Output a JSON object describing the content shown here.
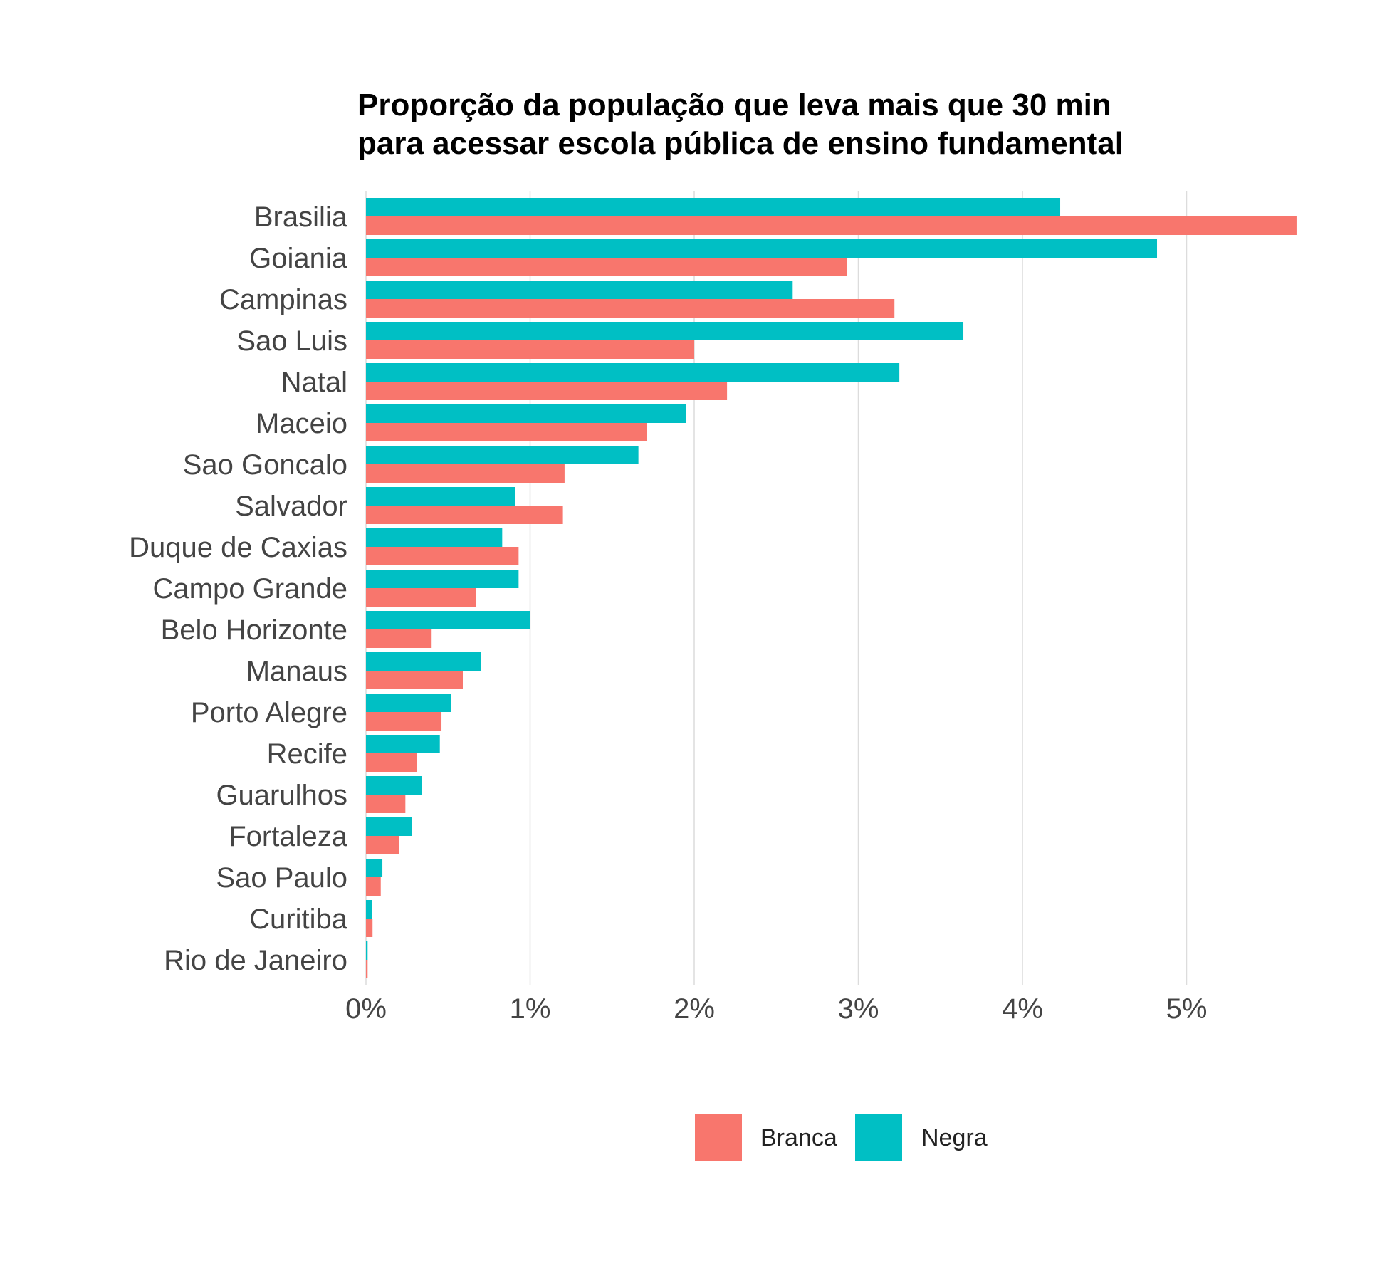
{
  "chart_data": {
    "type": "bar",
    "orientation": "horizontal",
    "title_lines": [
      "Proporção da população que leva mais que 30 min",
      "para acessar escola pública de ensino fundamental"
    ],
    "xlabel": "",
    "ylabel": "",
    "xlim": [
      0,
      5.75
    ],
    "x_ticks": [
      {
        "value": 0,
        "label": "0%"
      },
      {
        "value": 1,
        "label": "1%"
      },
      {
        "value": 2,
        "label": "2%"
      },
      {
        "value": 3,
        "label": "3%"
      },
      {
        "value": 4,
        "label": "4%"
      },
      {
        "value": 5,
        "label": "5%"
      }
    ],
    "grid": true,
    "legend_position": "bottom",
    "categories": [
      "Brasilia",
      "Goiania",
      "Campinas",
      "Sao Luis",
      "Natal",
      "Maceio",
      "Sao Goncalo",
      "Salvador",
      "Duque de Caxias",
      "Campo Grande",
      "Belo Horizonte",
      "Manaus",
      "Porto Alegre",
      "Recife",
      "Guarulhos",
      "Fortaleza",
      "Sao Paulo",
      "Curitiba",
      "Rio de Janeiro"
    ],
    "series": [
      {
        "name": "Negra",
        "color": "#00BFC4",
        "values": [
          4.23,
          4.82,
          2.6,
          3.64,
          3.25,
          1.95,
          1.66,
          0.91,
          0.83,
          0.93,
          1.0,
          0.7,
          0.52,
          0.45,
          0.34,
          0.28,
          0.1,
          0.035,
          0.01
        ]
      },
      {
        "name": "Branca",
        "color": "#F8766D",
        "values": [
          5.67,
          2.93,
          3.22,
          2.0,
          2.2,
          1.71,
          1.21,
          1.2,
          0.93,
          0.67,
          0.4,
          0.59,
          0.46,
          0.31,
          0.24,
          0.2,
          0.09,
          0.04,
          0.01
        ]
      }
    ],
    "legend_order": [
      "Branca",
      "Negra"
    ]
  }
}
